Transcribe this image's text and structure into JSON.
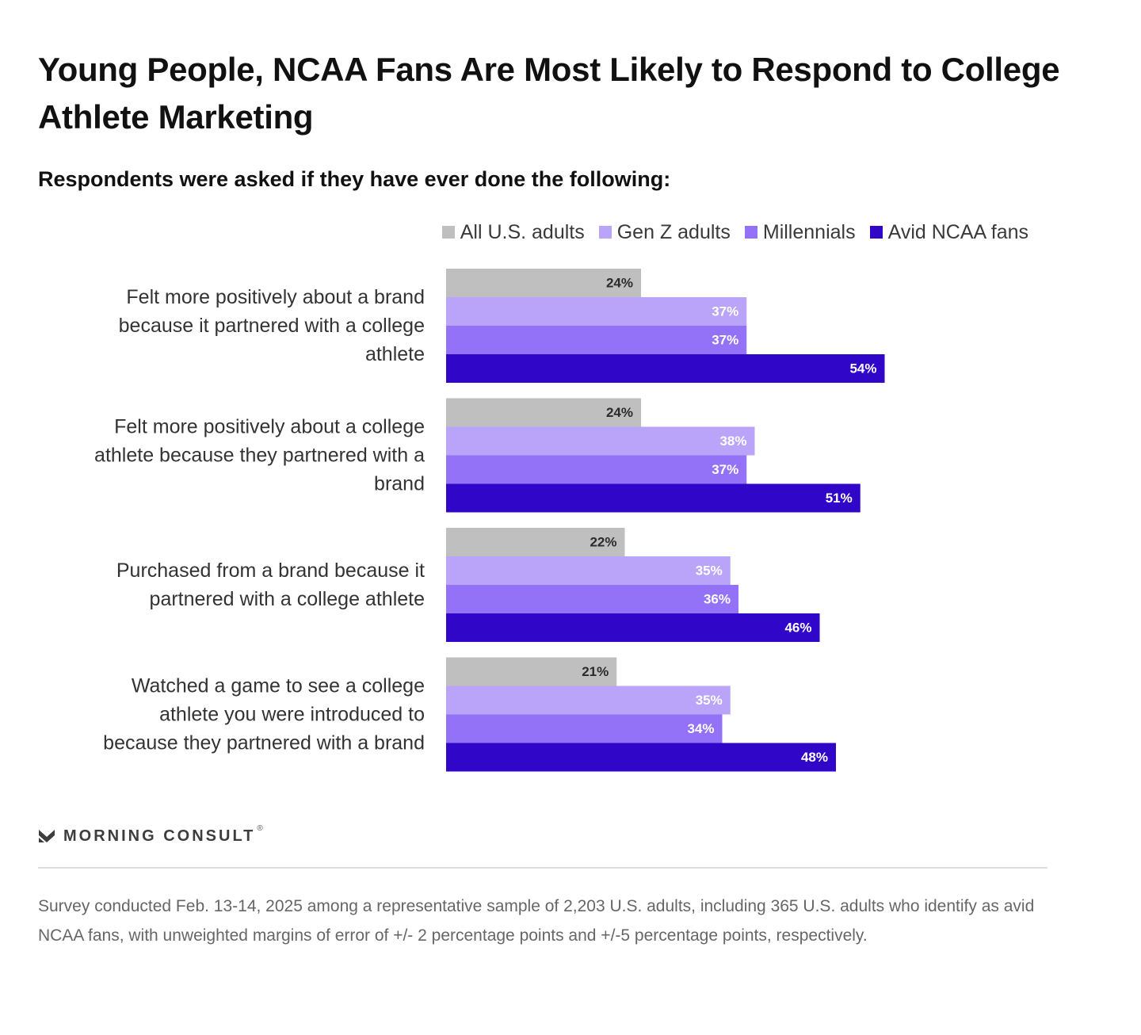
{
  "title": "Young People, NCAA Fans Are Most Likely to Respond to College Athlete Marketing",
  "subtitle": "Respondents were asked if they have ever done the following:",
  "legend": [
    {
      "label": "All U.S. adults",
      "color": "#bfbfbf"
    },
    {
      "label": "Gen Z adults",
      "color": "#b9a4fa"
    },
    {
      "label": "Millennials",
      "color": "#9472f8"
    },
    {
      "label": "Avid NCAA fans",
      "color": "#3006c8"
    }
  ],
  "chart_data": {
    "type": "bar",
    "orientation": "horizontal",
    "categories": [
      "Felt more positively about a brand because it partnered with a college athlete",
      "Felt more positively about a college athlete because they partnered with a brand",
      "Purchased from a brand because it partnered with a college athlete",
      "Watched a game to see a college athlete you were introduced to because they partnered with a brand"
    ],
    "category_lines": [
      [
        "Felt more positively about a brand",
        "because it partnered with a college",
        "athlete"
      ],
      [
        "Felt more positively about a college",
        "athlete because they partnered with a",
        "brand"
      ],
      [
        "Purchased from a brand because it",
        "partnered with a college athlete"
      ],
      [
        "Watched a game to see a college",
        "athlete you were introduced to",
        "because they partnered with a brand"
      ]
    ],
    "series": [
      {
        "name": "All U.S. adults",
        "color": "#bfbfbf",
        "label_color": "#2b2b2b",
        "values": [
          24,
          24,
          22,
          21
        ]
      },
      {
        "name": "Gen Z adults",
        "color": "#b9a4fa",
        "label_color": "#ffffff",
        "values": [
          37,
          38,
          35,
          35
        ]
      },
      {
        "name": "Millennials",
        "color": "#9472f8",
        "label_color": "#ffffff",
        "values": [
          37,
          37,
          36,
          34
        ]
      },
      {
        "name": "Avid NCAA fans",
        "color": "#3006c8",
        "label_color": "#ffffff",
        "values": [
          54,
          51,
          46,
          48
        ]
      }
    ],
    "value_suffix": "%",
    "xlim": [
      0,
      100
    ],
    "title": "Young People, NCAA Fans Are Most Likely to Respond to College Athlete Marketing",
    "legend_position": "top-right",
    "grid": false
  },
  "brand": {
    "name": "MORNING CONSULT",
    "mark": "®",
    "icon": "morning-consult-logo-icon"
  },
  "footnote": "Survey conducted Feb. 13-14, 2025 among a representative sample of 2,203 U.S. adults, including 365 U.S. adults who identify as avid NCAA fans, with unweighted margins of error of +/- 2 percentage points and +/-5 percentage points, respectively."
}
